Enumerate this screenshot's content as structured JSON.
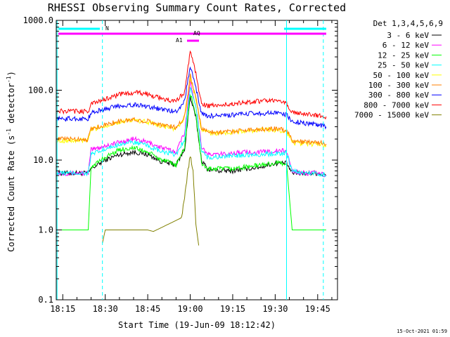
{
  "chart_data": {
    "type": "line",
    "title": "RHESSI Observing Summary Count Rates, Corrected",
    "xlabel": "Start Time (19-Jun-09 18:12:42)",
    "ylabel_main": "Corrected Count Rate (s",
    "ylabel_sup1": "-1",
    "ylabel_mid": " detector",
    "ylabel_sup2": "-1",
    "ylabel_end": ")",
    "yscale": "log",
    "ylim": [
      0.1,
      1000
    ],
    "xlim": [
      "18:12:42",
      "19:52:00"
    ],
    "x_ticks": [
      "18:15",
      "18:30",
      "18:45",
      "19:00",
      "19:15",
      "19:30",
      "19:45"
    ],
    "y_ticks": [
      "0.1",
      "1.0",
      "10.0",
      "100.0",
      "1000.0"
    ],
    "grid": false,
    "legend_position": "top-right",
    "legend_header": "Det 1,3,4,5,6,9",
    "timestamp": "15-Oct-2021 01:59",
    "series": [
      {
        "name": "3 - 6 keV",
        "color": "#000000",
        "x": [
          "18:13",
          "18:24",
          "18:25",
          "18:30",
          "18:35",
          "18:40",
          "18:45",
          "18:50",
          "18:55",
          "18:58",
          "19:00",
          "19:02",
          "19:04",
          "19:06",
          "19:10",
          "19:15",
          "19:20",
          "19:25",
          "19:30",
          "19:34",
          "19:36",
          "19:40",
          "19:45",
          "19:48"
        ],
        "y": [
          6.5,
          6.5,
          7.5,
          10,
          12,
          13,
          12,
          9.5,
          8.5,
          14,
          80,
          40,
          10,
          7.5,
          7,
          7,
          7.5,
          8,
          9,
          9,
          6.5,
          6.5,
          6.5,
          6
        ]
      },
      {
        "name": "6 - 12 keV",
        "color": "#ff00ff",
        "x": [
          "18:13",
          "18:24",
          "18:25",
          "18:30",
          "18:35",
          "18:40",
          "18:45",
          "18:50",
          "18:55",
          "18:58",
          "19:00",
          "19:02",
          "19:04",
          "19:06",
          "19:10",
          "19:15",
          "19:20",
          "19:25",
          "19:30",
          "19:34",
          "19:36",
          "19:40",
          "19:45",
          "19:48"
        ],
        "y": [
          6.5,
          6.5,
          14,
          16,
          18,
          20,
          18,
          15,
          13,
          25,
          130,
          60,
          16,
          12,
          12,
          12.5,
          13,
          13,
          13.5,
          13.5,
          7,
          6.5,
          6.5,
          6
        ]
      },
      {
        "name": "12 - 25 keV",
        "color": "#00ff00",
        "x": [
          "18:13",
          "18:24",
          "18:25",
          "18:30",
          "18:35",
          "18:40",
          "18:45",
          "18:50",
          "18:55",
          "18:58",
          "19:00",
          "19:02",
          "19:04",
          "19:06",
          "19:10",
          "19:15",
          "19:20",
          "19:25",
          "19:30",
          "19:34",
          "19:36",
          "19:40",
          "19:45",
          "19:48"
        ],
        "y": [
          1.0,
          1.0,
          8,
          11,
          14,
          15,
          13,
          10,
          8.5,
          15,
          90,
          45,
          9,
          7.5,
          7.5,
          7.5,
          8,
          8.5,
          9,
          9,
          1.0,
          1.0,
          1.0,
          1.0
        ]
      },
      {
        "name": "25 - 50 keV",
        "color": "#00ffff",
        "x": [
          "18:13",
          "18:24",
          "18:25",
          "18:30",
          "18:35",
          "18:40",
          "18:45",
          "18:50",
          "18:55",
          "18:58",
          "19:00",
          "19:02",
          "19:04",
          "19:06",
          "19:10",
          "19:15",
          "19:20",
          "19:25",
          "19:30",
          "19:34",
          "19:36",
          "19:40",
          "19:45",
          "19:48"
        ],
        "y": [
          6.5,
          6.5,
          12,
          14,
          17,
          18,
          16,
          13,
          12,
          20,
          110,
          55,
          14,
          11,
          11,
          11.5,
          12,
          12,
          12.5,
          12.5,
          7,
          6.5,
          6.5,
          6
        ]
      },
      {
        "name": "50 - 100 keV",
        "color": "#ffff00",
        "x": [
          "18:13",
          "18:24",
          "18:25",
          "18:30",
          "18:35",
          "18:40",
          "18:45",
          "18:50",
          "18:55",
          "18:58",
          "19:00",
          "19:02",
          "19:04",
          "19:06",
          "19:10",
          "19:15",
          "19:20",
          "19:25",
          "19:30",
          "19:34",
          "19:36",
          "19:40",
          "19:45",
          "19:48"
        ],
        "y": [
          19,
          19,
          27,
          31,
          35,
          37,
          35,
          31,
          28,
          40,
          150,
          75,
          27,
          25,
          24,
          25,
          26,
          27,
          27,
          26,
          18,
          17,
          17,
          16
        ]
      },
      {
        "name": "100 - 300 keV",
        "color": "#ff7f00",
        "x": [
          "18:13",
          "18:24",
          "18:25",
          "18:30",
          "18:35",
          "18:40",
          "18:45",
          "18:50",
          "18:55",
          "18:58",
          "19:00",
          "19:02",
          "19:04",
          "19:06",
          "19:10",
          "19:15",
          "19:20",
          "19:25",
          "19:30",
          "19:34",
          "19:36",
          "19:40",
          "19:45",
          "19:48"
        ],
        "y": [
          20,
          20,
          28,
          32,
          36,
          38,
          36,
          32,
          29,
          42,
          160,
          80,
          28,
          26,
          25,
          26,
          27,
          28,
          28,
          27,
          19,
          18,
          18,
          17
        ]
      },
      {
        "name": "300 - 800 keV",
        "color": "#0000ff",
        "x": [
          "18:13",
          "18:24",
          "18:25",
          "18:30",
          "18:35",
          "18:40",
          "18:45",
          "18:50",
          "18:55",
          "18:58",
          "19:00",
          "19:02",
          "19:04",
          "19:06",
          "19:10",
          "19:15",
          "19:20",
          "19:25",
          "19:30",
          "19:34",
          "19:36",
          "19:40",
          "19:45",
          "19:48"
        ],
        "y": [
          39,
          39,
          47,
          54,
          60,
          62,
          59,
          53,
          49,
          70,
          220,
          110,
          46,
          43,
          43,
          44,
          46,
          47,
          47,
          45,
          36,
          34,
          32,
          30
        ]
      },
      {
        "name": "800 - 7000 keV",
        "color": "#ff0000",
        "x": [
          "18:13",
          "18:24",
          "18:25",
          "18:30",
          "18:35",
          "18:40",
          "18:45",
          "18:50",
          "18:55",
          "18:58",
          "19:00",
          "19:02",
          "19:04",
          "19:06",
          "19:10",
          "19:15",
          "19:20",
          "19:25",
          "19:30",
          "19:34",
          "19:36",
          "19:40",
          "19:45",
          "19:48"
        ],
        "y": [
          50,
          50,
          63,
          75,
          87,
          93,
          88,
          76,
          68,
          95,
          360,
          170,
          65,
          60,
          60,
          64,
          68,
          70,
          70,
          66,
          48,
          46,
          44,
          42
        ]
      },
      {
        "name": "7000 - 15000 keV",
        "color": "#808000",
        "x": [
          "18:29",
          "18:30",
          "18:35",
          "18:40",
          "18:45",
          "18:47",
          "18:57",
          "18:58",
          "19:00",
          "19:01",
          "19:02",
          "19:03"
        ],
        "y": [
          0.65,
          1.0,
          1.0,
          1.0,
          1.0,
          0.95,
          1.5,
          3.0,
          12,
          7,
          1.2,
          0.6
        ]
      }
    ],
    "annotations": {
      "segment_labels": [
        "N",
        "AQ",
        "A1"
      ],
      "segment_colors": {
        "N": "#00ffff",
        "AQ": "#ff00ff",
        "A1": "#ff00ff"
      },
      "dashed_line_times": [
        "18:29",
        "19:47"
      ],
      "solid_line_times": [
        "18:13",
        "19:34"
      ]
    }
  }
}
